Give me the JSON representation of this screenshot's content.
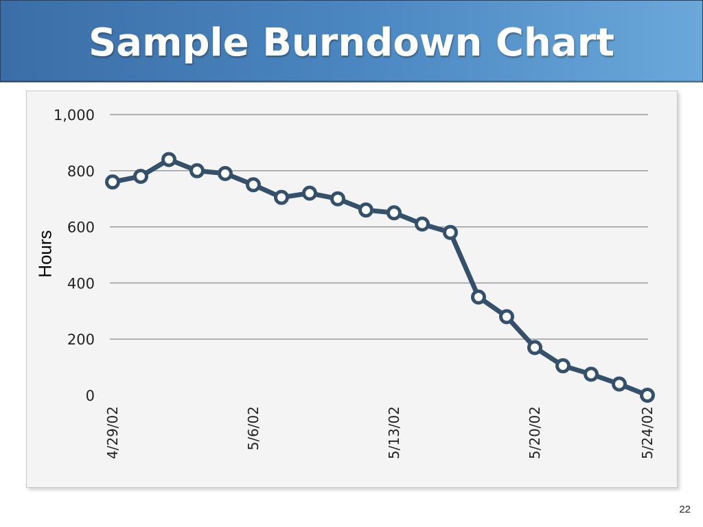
{
  "slide": {
    "title": "Sample Burndown Chart",
    "page_number": "22"
  },
  "colors": {
    "line": "#34506a",
    "grid": "#9a9a9a",
    "marker_fill": "#ffffff"
  },
  "chart_data": {
    "type": "line",
    "ylabel": "Hours",
    "ylim": [
      0,
      1000
    ],
    "yticks": [
      {
        "value": 0,
        "label": "0"
      },
      {
        "value": 200,
        "label": "200"
      },
      {
        "value": 400,
        "label": "400"
      },
      {
        "value": 600,
        "label": "600"
      },
      {
        "value": 800,
        "label": "800"
      },
      {
        "value": 1000,
        "label": "1,000"
      }
    ],
    "xticks": [
      {
        "index": 0,
        "label": "4/29/02"
      },
      {
        "index": 5,
        "label": "5/6/02"
      },
      {
        "index": 10,
        "label": "5/13/02"
      },
      {
        "index": 15,
        "label": "5/20/02"
      },
      {
        "index": 19,
        "label": "5/24/02"
      }
    ],
    "grid": true,
    "series": [
      {
        "values": [
          760,
          780,
          840,
          800,
          790,
          750,
          705,
          720,
          700,
          660,
          650,
          610,
          580,
          350,
          280,
          170,
          105,
          75,
          40,
          0
        ]
      }
    ]
  }
}
